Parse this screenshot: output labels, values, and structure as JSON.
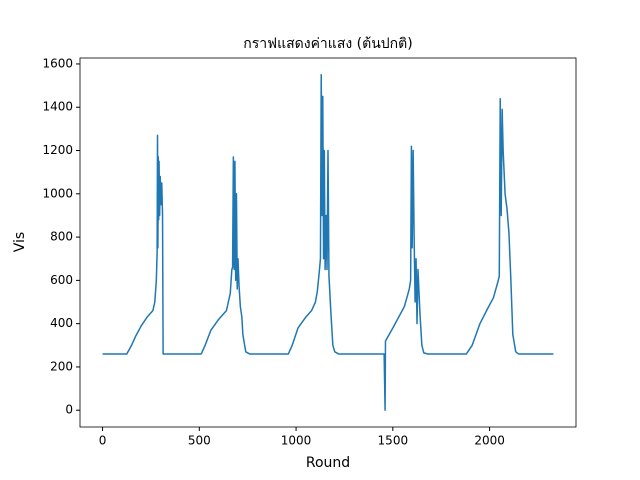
{
  "chart_data": {
    "type": "line",
    "title": "กราฟแสดงค่าแสง (ต้นปกติ)",
    "x_label": "Round",
    "y_label": "Vis",
    "x": [
      0,
      50,
      125,
      150,
      170,
      200,
      230,
      260,
      270,
      278,
      282,
      284,
      286,
      288,
      290,
      292,
      295,
      298,
      302,
      306,
      310,
      313,
      350,
      400,
      510,
      530,
      560,
      600,
      640,
      660,
      668,
      672,
      676,
      680,
      684,
      688,
      692,
      696,
      700,
      705,
      712,
      720,
      725,
      740,
      760,
      960,
      980,
      1010,
      1050,
      1080,
      1100,
      1110,
      1120,
      1126,
      1130,
      1134,
      1138,
      1142,
      1146,
      1150,
      1155,
      1160,
      1165,
      1170,
      1180,
      1190,
      1200,
      1220,
      1455,
      1460,
      1462,
      1500,
      1530,
      1560,
      1585,
      1592,
      1596,
      1600,
      1605,
      1610,
      1615,
      1620,
      1625,
      1630,
      1640,
      1650,
      1660,
      1680,
      1880,
      1910,
      1950,
      1990,
      2020,
      2045,
      2050,
      2055,
      2060,
      2065,
      2070,
      2080,
      2090,
      2100,
      2110,
      2120,
      2135,
      2150,
      2330
    ],
    "values": [
      260,
      260,
      260,
      300,
      340,
      390,
      430,
      460,
      500,
      600,
      730,
      1270,
      750,
      1170,
      880,
      1150,
      900,
      1080,
      950,
      1050,
      900,
      260,
      260,
      260,
      260,
      300,
      370,
      420,
      460,
      540,
      650,
      660,
      1170,
      650,
      1150,
      600,
      1000,
      560,
      700,
      580,
      480,
      430,
      350,
      270,
      260,
      260,
      300,
      380,
      430,
      460,
      500,
      550,
      640,
      700,
      1550,
      900,
      1450,
      700,
      1200,
      650,
      900,
      650,
      1200,
      620,
      450,
      300,
      270,
      260,
      260,
      0,
      320,
      380,
      430,
      480,
      560,
      600,
      1220,
      750,
      1200,
      800,
      500,
      700,
      400,
      650,
      450,
      300,
      265,
      260,
      260,
      300,
      400,
      470,
      520,
      600,
      620,
      1440,
      900,
      1390,
      1200,
      1000,
      930,
      820,
      600,
      350,
      270,
      260,
      260
    ],
    "color": "#1f77b4",
    "xlim": [
      -116.5,
      2446.5
    ],
    "xticks": [
      0,
      500,
      1000,
      1500,
      2000
    ],
    "ylim": [
      -77.5,
      1627.5
    ],
    "yticks": [
      0,
      200,
      400,
      600,
      800,
      1000,
      1200,
      1400,
      1600
    ],
    "grid": false
  }
}
